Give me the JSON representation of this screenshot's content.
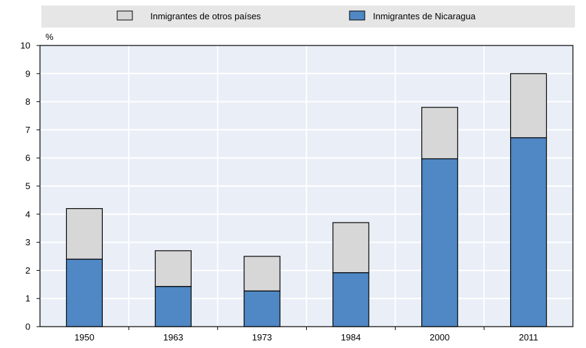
{
  "chart_data": {
    "type": "bar",
    "stacked": true,
    "categories": [
      "1950",
      "1963",
      "1973",
      "1984",
      "2000",
      "2011"
    ],
    "series": [
      {
        "name": "Inmigrantes de Nicaragua",
        "values": [
          2.4,
          1.43,
          1.27,
          1.92,
          5.97,
          6.72
        ],
        "color": "#4f88c4"
      },
      {
        "name": "Inmigrantes de otros países",
        "values": [
          1.8,
          1.27,
          1.23,
          1.78,
          1.83,
          2.28
        ],
        "color": "#d7d7d7"
      }
    ],
    "y_unit_label": "%",
    "ylim": [
      0,
      10
    ],
    "yticks": [
      "0",
      "1",
      "2",
      "3",
      "4",
      "5",
      "6",
      "7",
      "8",
      "9",
      "10"
    ],
    "grid": true,
    "legend_position": "top",
    "colors": {
      "plot_background": "#e9eef7",
      "legend_background": "#e6e6e6",
      "grid": "#ffffff"
    }
  }
}
